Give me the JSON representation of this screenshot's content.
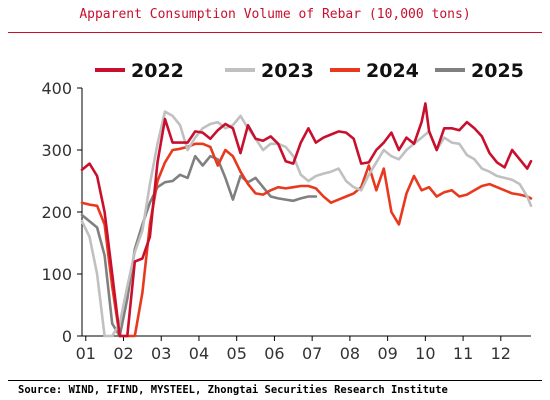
{
  "title": "Apparent Consumption Volume of Rebar (10,000 tons)",
  "source": "Source: WIND, IFIND, MYSTEEL, Zhongtai Securities Research Institute",
  "chart_data": {
    "type": "line",
    "title": "Apparent Consumption Volume of Rebar (10,000 tons)",
    "xlabel": "",
    "ylabel": "",
    "x_range": [
      0.9,
      12.8
    ],
    "ylim": [
      0,
      400
    ],
    "yticks": [
      0,
      100,
      200,
      300,
      400
    ],
    "xtick_labels": [
      "01",
      "02",
      "03",
      "04",
      "05",
      "06",
      "07",
      "08",
      "09",
      "10",
      "11",
      "12"
    ],
    "grid": false,
    "legend_position": "top",
    "series": [
      {
        "name": "2022",
        "color": "#c8102e",
        "x": [
          0.9,
          1.1,
          1.3,
          1.5,
          1.7,
          1.9,
          2.1,
          2.3,
          2.5,
          2.7,
          2.9,
          3.1,
          3.3,
          3.5,
          3.7,
          3.9,
          4.1,
          4.3,
          4.5,
          4.7,
          4.9,
          5.1,
          5.3,
          5.5,
          5.7,
          5.9,
          6.1,
          6.3,
          6.5,
          6.7,
          6.9,
          7.1,
          7.3,
          7.5,
          7.7,
          7.9,
          8.1,
          8.3,
          8.5,
          8.7,
          8.9,
          9.1,
          9.3,
          9.5,
          9.7,
          9.9,
          10.0,
          10.1,
          10.3,
          10.5,
          10.7,
          10.9,
          11.1,
          11.3,
          11.5,
          11.7,
          11.9,
          12.1,
          12.3,
          12.5,
          12.7,
          12.8
        ],
        "values": [
          268,
          278,
          258,
          200,
          100,
          0,
          0,
          120,
          125,
          160,
          280,
          350,
          312,
          312,
          312,
          330,
          328,
          318,
          332,
          342,
          335,
          295,
          340,
          318,
          315,
          322,
          310,
          282,
          278,
          312,
          335,
          312,
          320,
          325,
          330,
          328,
          318,
          278,
          280,
          300,
          312,
          328,
          300,
          320,
          310,
          345,
          375,
          330,
          300,
          335,
          335,
          332,
          345,
          335,
          322,
          295,
          280,
          272,
          300,
          285,
          270,
          282
        ],
        "y_unit": "10,000 tons"
      },
      {
        "name": "2023",
        "color": "#c0c0c0",
        "x": [
          0.9,
          1.1,
          1.3,
          1.5,
          1.7,
          1.9,
          2.1,
          2.3,
          2.5,
          2.7,
          2.9,
          3.1,
          3.3,
          3.5,
          3.7,
          3.9,
          4.1,
          4.3,
          4.5,
          4.7,
          4.9,
          5.1,
          5.3,
          5.5,
          5.7,
          5.9,
          6.1,
          6.3,
          6.5,
          6.7,
          6.9,
          7.1,
          7.3,
          7.5,
          7.7,
          7.9,
          8.1,
          8.3,
          8.5,
          8.7,
          8.9,
          9.1,
          9.3,
          9.5,
          9.7,
          9.9,
          10.1,
          10.3,
          10.5,
          10.7,
          10.9,
          11.1,
          11.3,
          11.5,
          11.7,
          11.9,
          12.1,
          12.3,
          12.5,
          12.7,
          12.8
        ],
        "values": [
          185,
          160,
          100,
          0,
          0,
          20,
          80,
          135,
          170,
          245,
          310,
          362,
          355,
          340,
          300,
          320,
          335,
          342,
          345,
          335,
          340,
          355,
          335,
          318,
          300,
          310,
          310,
          305,
          290,
          260,
          250,
          258,
          262,
          265,
          270,
          250,
          240,
          235,
          260,
          280,
          300,
          290,
          285,
          300,
          310,
          320,
          330,
          300,
          320,
          312,
          310,
          292,
          285,
          270,
          265,
          258,
          255,
          252,
          245,
          225,
          210
        ],
        "y_unit": "10,000 tons"
      },
      {
        "name": "2024",
        "color": "#e8391e",
        "x": [
          0.9,
          1.1,
          1.3,
          1.5,
          1.7,
          1.9,
          2.1,
          2.3,
          2.5,
          2.7,
          2.9,
          3.1,
          3.3,
          3.5,
          3.7,
          3.9,
          4.1,
          4.3,
          4.5,
          4.7,
          4.9,
          5.1,
          5.3,
          5.5,
          5.7,
          5.9,
          6.1,
          6.3,
          6.5,
          6.7,
          6.9,
          7.1,
          7.3,
          7.5,
          7.7,
          7.9,
          8.1,
          8.3,
          8.5,
          8.7,
          8.9,
          9.1,
          9.3,
          9.5,
          9.7,
          9.9,
          10.1,
          10.3,
          10.5,
          10.7,
          10.9,
          11.1,
          11.3,
          11.5,
          11.7,
          11.9,
          12.1,
          12.3,
          12.5,
          12.7,
          12.8
        ],
        "values": [
          215,
          212,
          210,
          180,
          80,
          0,
          0,
          0,
          70,
          180,
          250,
          280,
          300,
          302,
          305,
          310,
          310,
          305,
          275,
          300,
          290,
          265,
          245,
          230,
          228,
          235,
          240,
          238,
          240,
          242,
          242,
          238,
          225,
          215,
          220,
          225,
          230,
          240,
          275,
          235,
          270,
          200,
          180,
          230,
          258,
          235,
          240,
          225,
          232,
          235,
          225,
          228,
          235,
          242,
          245,
          240,
          235,
          230,
          228,
          225,
          222
        ],
        "y_unit": "10,000 tons"
      },
      {
        "name": "2025",
        "color": "#808080",
        "x": [
          0.9,
          1.1,
          1.3,
          1.5,
          1.7,
          1.9,
          2.1,
          2.3,
          2.5,
          2.7,
          2.9,
          3.1,
          3.3,
          3.5,
          3.7,
          3.9,
          4.1,
          4.3,
          4.5,
          4.7,
          4.9,
          5.1,
          5.3,
          5.5,
          5.7,
          5.9,
          6.1,
          6.3,
          6.5,
          6.7,
          6.9,
          7.1
        ],
        "values": [
          195,
          185,
          175,
          130,
          20,
          0,
          60,
          140,
          180,
          215,
          240,
          248,
          250,
          260,
          255,
          290,
          275,
          290,
          285,
          255,
          220,
          258,
          248,
          255,
          240,
          225,
          222,
          220,
          218,
          222,
          225,
          225
        ],
        "y_unit": "10,000 tons"
      }
    ]
  }
}
